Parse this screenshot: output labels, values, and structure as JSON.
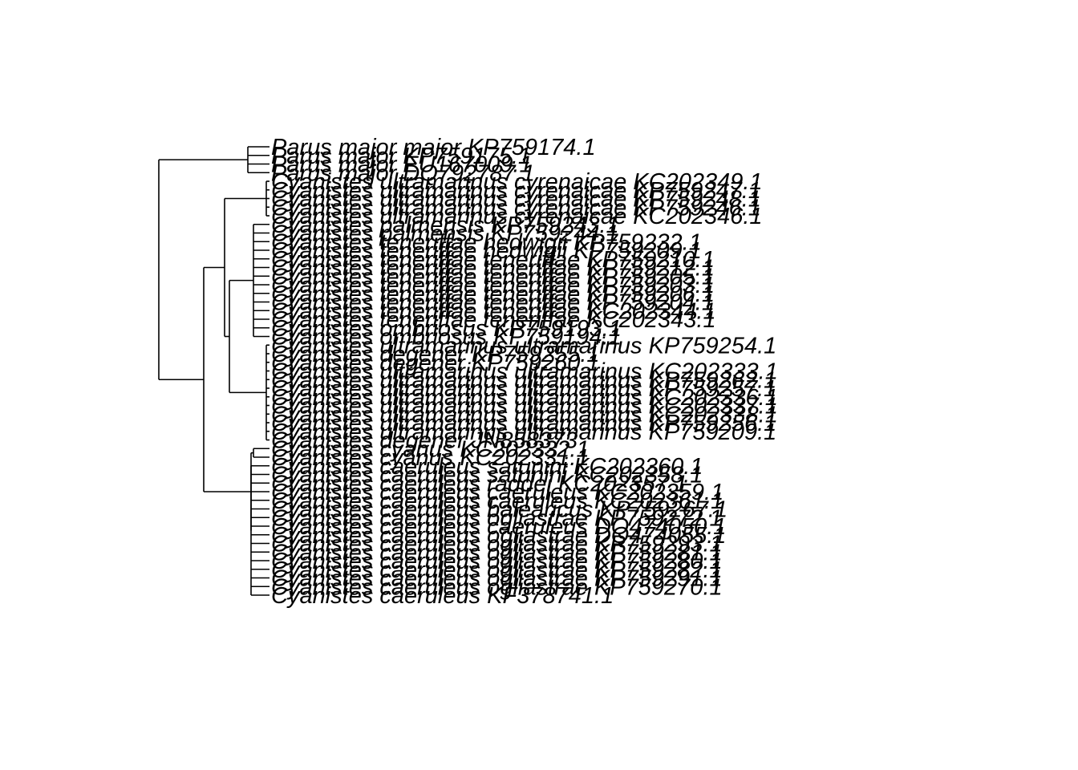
{
  "figure": {
    "type": "phylogenetic-tree",
    "orientation": "rightwards",
    "colors": {
      "line": "#000000",
      "text": "#000000",
      "background": "#ffffff"
    }
  },
  "tips": [
    "Parus major major KP759174.1",
    "Parus major KP759175.1",
    "Parus major EU167009.1",
    "Parus major DQ792787.1",
    "Cyanistes ultramarinus cyrenaicae KC202349.1",
    "Cyanistes ultramarinus cyrenaicae KP759247.1",
    "Cyanistes ultramarinus cyrenaicae KP759248.1",
    "Cyanistes ultramarinus cyrenaicae KP759246.1",
    "Cyanistes ultramarinus cyrenaicae KC202346.1",
    "Cyanistes palmensis KP759243.1",
    "Cyanistes palmensis KP759244.1",
    "Cyanistes teneriffae hedwigii KP759232.1",
    "Cyanistes teneriffae hedwigii KP759209.1",
    "Cyanistes teneriffae teneriffae KP759210.1",
    "Cyanistes teneriffae teneriffae KP759212.1",
    "Cyanistes teneriffae teneriffae KP759205.1",
    "Cyanistes teneriffae teneriffae KP759203.1",
    "Cyanistes teneriffae teneriffae KP759206.1",
    "Cyanistes teneriffae teneriffae KP759204.1",
    "Cyanistes teneriffae teneriffae KC202344.1",
    "Cyanistes teneriffae teneriffae KC202343.1",
    "Cyanistes ombriosus KP759193.1",
    "Cyanistes ombriosus KP759194.1",
    "Cyanistes ultramarinus ultramarinus KP759254.1",
    "Cyanistes degener KP759255.1",
    "Cyanistes degener KP759260.1",
    "Cyanistes ultramarinus ultramarinus KC202333.1",
    "Cyanistes ultramarinus ultramarinus KP759262.1",
    "Cyanistes ultramarinus ultramarinus KP759257.1",
    "Cyanistes ultramarinus ultramarinus KC202336.1",
    "Cyanistes ultramarinus ultramarinus KC202337.1",
    "Cyanistes ultramarinus ultramarinus KC202338.1",
    "Cyanistes ultramarinus ultramarinus KP759256.1",
    "Cyanistes ultramarinus ultramarinus KP759209.1",
    "Cyanistes degener JN858373",
    "Cyanistes cyanus KC202332.1",
    "Cyanistes cyanus KC202331.1",
    "Cyanistes caeruleus satunini KC202360.1",
    "Cyanistes caeruleus satunini KC202358.1",
    "Cyanistes caeruleus raddei KC202357.1",
    "Cyanistes caeruleus caeruleus KC202359.1",
    "Cyanistes caeruleus caeruleus KC202361.1",
    "Cyanistes caeruleus balearicus KP759267.1",
    "Cyanistes caeruleus ogliastrae KP759272.1",
    "Cyanistes caeruleus caeruleus DQ474050.1",
    "Cyanistes caeruleus ogliastrae DQ474055.1",
    "Cyanistes caeruleus ogliastrae KP759293.1",
    "Cyanistes caeruleus ogliastrae KP759281.1",
    "Cyanistes caeruleus ogliastrae KP759280.1",
    "Cyanistes caeruleus ogliastrae KP759282.1",
    "Cyanistes caeruleus ogliastrae KP759291.1",
    "Cyanistes caeruleus ogliastrae KP759270.1",
    "Cyanistes caeruleus KF378741.1"
  ]
}
